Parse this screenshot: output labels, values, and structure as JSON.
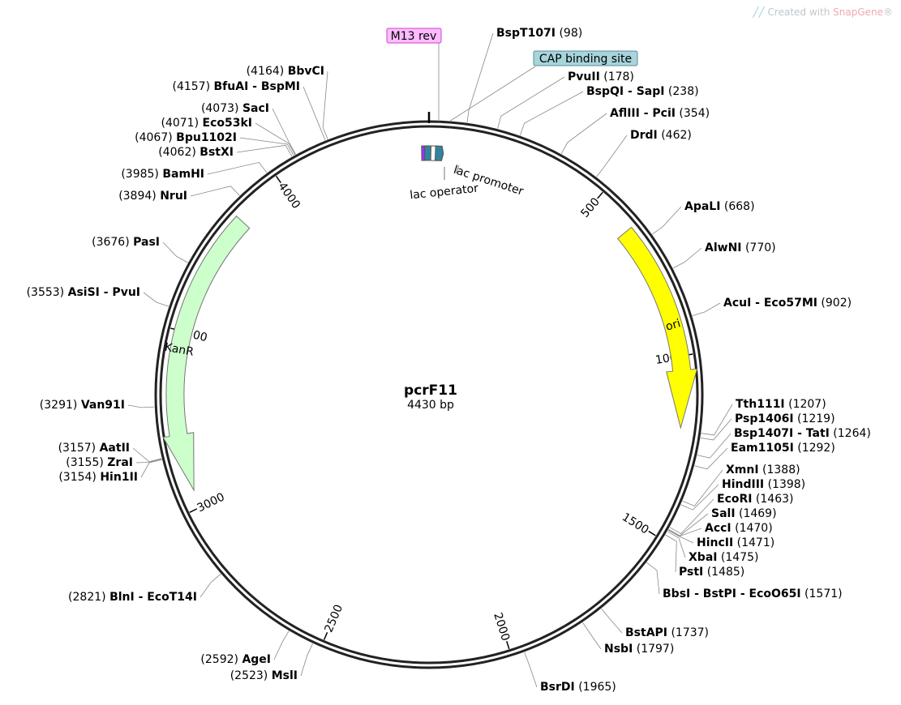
{
  "watermark": {
    "prefix": "Created with ",
    "brand": "SnapGene",
    "mark": "®"
  },
  "plasmid": {
    "name": "pcrF11",
    "length_label": "4430 bp",
    "length": 4430
  },
  "ticks": [
    {
      "label": "500",
      "pos": 500
    },
    {
      "label": "1000",
      "pos": 1000
    },
    {
      "label": "1500",
      "pos": 1500
    },
    {
      "label": "2000",
      "pos": 2000
    },
    {
      "label": "2500",
      "pos": 2500
    },
    {
      "label": "3000",
      "pos": 3000
    },
    {
      "label": "3500",
      "pos": 3500
    },
    {
      "label": "4000",
      "pos": 4000
    }
  ],
  "features": [
    {
      "name": "ori",
      "start": 620,
      "end": 1200,
      "dir": 1,
      "color": "#ffff00"
    },
    {
      "name": "KanR",
      "start": 3050,
      "end": 3850,
      "dir": -1,
      "color": "#ccffcc"
    }
  ],
  "small_features": [
    {
      "pos": 4418,
      "color": "#9933ff"
    },
    {
      "pos": 4427,
      "color": "#31849b"
    },
    {
      "pos": 15,
      "color": "#ffffff"
    },
    {
      "pos": 28,
      "color": "#31849b"
    }
  ],
  "feature_labels": [
    {
      "name": "lac operator",
      "side": "left"
    },
    {
      "name": "lac promoter",
      "side": "right"
    }
  ],
  "boxed_labels": [
    {
      "name": "M13 rev",
      "pos": 0,
      "color": "#ffbbff",
      "border": "#cc44cc"
    },
    {
      "name": "CAP binding site",
      "pos": 55,
      "color": "#a8d4dc",
      "border": "#5a8c96"
    }
  ],
  "sites_right": [
    {
      "name": "BspT107I",
      "pos": "98",
      "p": 98
    },
    {
      "name": "PvuII",
      "pos": "178",
      "p": 178
    },
    {
      "name": "BspQI - SapI",
      "pos": "238",
      "p": 238
    },
    {
      "name": "AflIII - PciI",
      "pos": "354",
      "p": 354
    },
    {
      "name": "DrdI",
      "pos": "462",
      "p": 462
    },
    {
      "name": "ApaLI",
      "pos": "668",
      "p": 668
    },
    {
      "name": "AlwNI",
      "pos": "770",
      "p": 770
    },
    {
      "name": "AcuI - Eco57MI",
      "pos": "902",
      "p": 902
    },
    {
      "name": "Tth111I",
      "pos": "1207",
      "p": 1207
    },
    {
      "name": "Psp1406I",
      "pos": "1219",
      "p": 1219
    },
    {
      "name": "Bsp1407I - TatI",
      "pos": "1264",
      "p": 1264
    },
    {
      "name": "Eam1105I",
      "pos": "1292",
      "p": 1292
    },
    {
      "name": "XmnI",
      "pos": "1388",
      "p": 1388
    },
    {
      "name": "HindIII",
      "pos": "1398",
      "p": 1398
    },
    {
      "name": "EcoRI",
      "pos": "1463",
      "p": 1463
    },
    {
      "name": "SalI",
      "pos": "1469",
      "p": 1469
    },
    {
      "name": "AccI",
      "pos": "1470",
      "p": 1470
    },
    {
      "name": "HincII",
      "pos": "1471",
      "p": 1471
    },
    {
      "name": "XbaI",
      "pos": "1475",
      "p": 1475
    },
    {
      "name": "PstI",
      "pos": "1485",
      "p": 1485
    },
    {
      "name": "BbsI - BstPI - EcoO65I",
      "pos": "1571",
      "p": 1571
    },
    {
      "name": "BstAPI",
      "pos": "1737",
      "p": 1737
    },
    {
      "name": "NsbI",
      "pos": "1797",
      "p": 1797
    },
    {
      "name": "BsrDI",
      "pos": "1965",
      "p": 1965
    }
  ],
  "sites_left": [
    {
      "name": "BbvCI",
      "pos": "4164",
      "p": 4164
    },
    {
      "name": "BfuAI - BspMI",
      "pos": "4157",
      "p": 4157
    },
    {
      "name": "SacI",
      "pos": "4073",
      "p": 4073
    },
    {
      "name": "Eco53kI",
      "pos": "4071",
      "p": 4071
    },
    {
      "name": "Bpu1102I",
      "pos": "4067",
      "p": 4067
    },
    {
      "name": "BstXI",
      "pos": "4062",
      "p": 4062
    },
    {
      "name": "BamHI",
      "pos": "3985",
      "p": 3985
    },
    {
      "name": "NruI",
      "pos": "3894",
      "p": 3894
    },
    {
      "name": "PasI",
      "pos": "3676",
      "p": 3676
    },
    {
      "name": "AsiSI - PvuI",
      "pos": "3553",
      "p": 3553
    },
    {
      "name": "Van91I",
      "pos": "3291",
      "p": 3291
    },
    {
      "name": "AatII",
      "pos": "3157",
      "p": 3157
    },
    {
      "name": "ZraI",
      "pos": "3155",
      "p": 3155
    },
    {
      "name": "Hin1II",
      "pos": "3154",
      "p": 3154
    },
    {
      "name": "BlnI - EcoT14I",
      "pos": "2821",
      "p": 2821
    },
    {
      "name": "AgeI",
      "pos": "2592",
      "p": 2592
    },
    {
      "name": "MslI",
      "pos": "2523",
      "p": 2523
    }
  ]
}
